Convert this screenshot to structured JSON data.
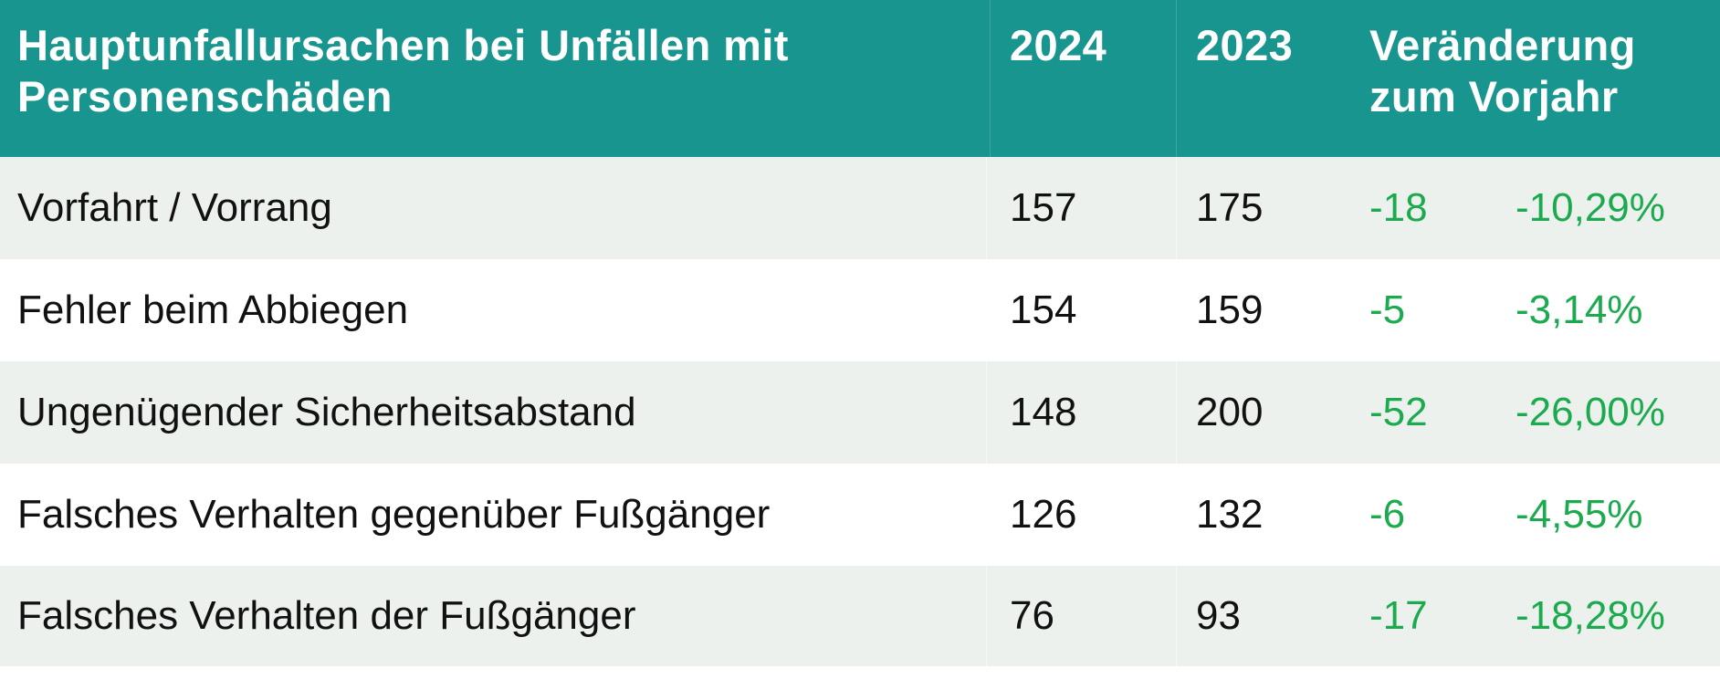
{
  "header": {
    "cause_line1": "Hauptunfallursachen bei Unfällen mit",
    "cause_line2": "Personenschäden",
    "year_current": "2024",
    "year_previous": "2023",
    "change_line1": "Veränderung",
    "change_line2": "zum Vorjahr"
  },
  "rows": [
    {
      "cause": "Vorfahrt / Vorrang",
      "y2024": "157",
      "y2023": "175",
      "diff": "-18",
      "pct": "-10,29%"
    },
    {
      "cause": "Fehler beim Abbiegen",
      "y2024": "154",
      "y2023": "159",
      "diff": "-5",
      "pct": "-3,14%"
    },
    {
      "cause": "Ungenügender Sicherheitsabstand",
      "y2024": "148",
      "y2023": "200",
      "diff": "-52",
      "pct": "-26,00%"
    },
    {
      "cause": "Falsches Verhalten gegenüber Fußgänger",
      "y2024": "126",
      "y2023": "132",
      "diff": "-6",
      "pct": "-4,55%"
    },
    {
      "cause": "Falsches Verhalten der Fußgänger",
      "y2024": "76",
      "y2023": "93",
      "diff": "-17",
      "pct": "-18,28%"
    }
  ],
  "colors": {
    "header_bg": "#18958f",
    "header_text": "#ffffff",
    "row_shade": "#edf1ee",
    "row_plain": "#ffffff",
    "value_text": "#111111",
    "change_text": "#1caa4f"
  }
}
